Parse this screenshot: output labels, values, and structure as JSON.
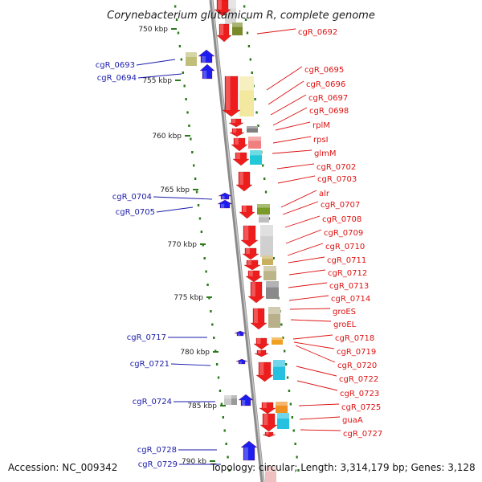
{
  "title": "Corynebacterium glutamicum R, complete genome",
  "footer": {
    "accession": "Accession: NC_009342",
    "summary": "Topology: circular; Length: 3,314,179 bp; Genes: 3,128"
  },
  "kbp_labels": [
    "750 kbp",
    "755 kbp",
    "760 kbp",
    "765 kbp",
    "770 kbp",
    "775 kbp",
    "780 kbp",
    "785 kbp",
    "790 kb"
  ],
  "colors": {
    "forward_strand": "#ee1111",
    "reverse_strand": "#1111ee",
    "backbone": "#888888",
    "tick": "#2a7a1a",
    "right_label": "#dd1111",
    "left_label": "#1a1aaa"
  },
  "left_genes": [
    "cgR_0693",
    "cgR_0694",
    "cgR_0704",
    "cgR_0705",
    "cgR_0717",
    "cgR_0721",
    "cgR_0724",
    "cgR_0728",
    "cgR_0729"
  ],
  "right_genes": [
    "cgR_0692",
    "cgR_0695",
    "cgR_0696",
    "cgR_0697",
    "cgR_0698",
    "rplM",
    "rpsI",
    "glmM",
    "cgR_0702",
    "cgR_0703",
    "alr",
    "cgR_0707",
    "cgR_0708",
    "cgR_0709",
    "cgR_0710",
    "cgR_0711",
    "cgR_0712",
    "cgR_0713",
    "cgR_0714",
    "groES",
    "groEL",
    "cgR_0718",
    "cgR_0719",
    "cgR_0720",
    "cgR_0722",
    "cgR_0723",
    "cgR_0725",
    "guaA",
    "cgR_0727"
  ]
}
